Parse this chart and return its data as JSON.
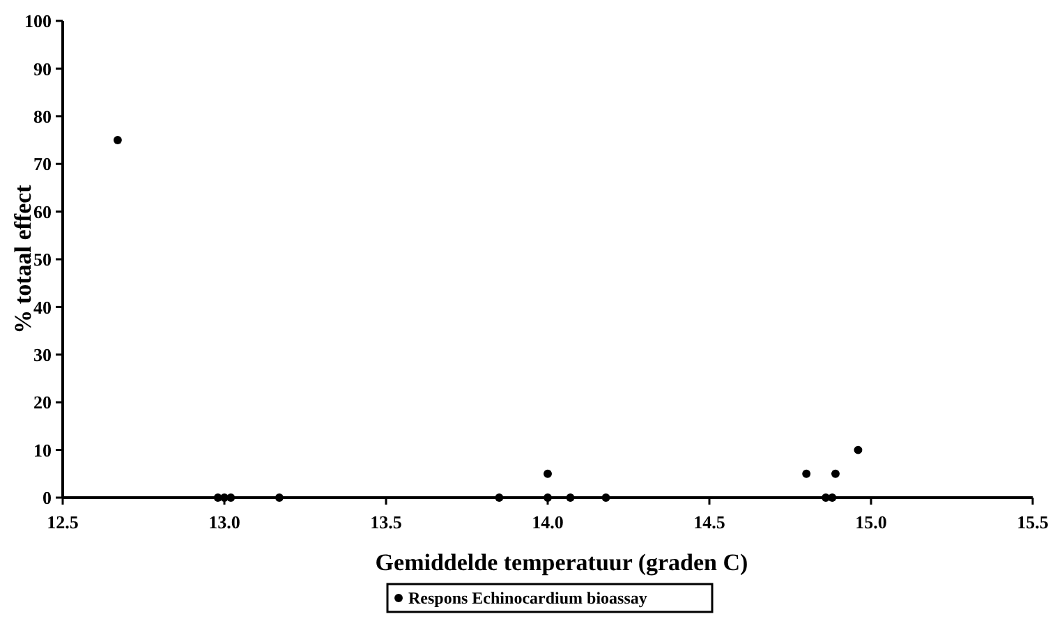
{
  "chart_data": {
    "type": "scatter",
    "xlabel": "Gemiddelde temperatuur (graden C)",
    "ylabel": "% totaal effect",
    "xlim": [
      12.5,
      15.5
    ],
    "xticks": [
      {
        "value": 12.5,
        "label": "12.5"
      },
      {
        "value": 13,
        "label": "13.0"
      },
      {
        "value": 13.5,
        "label": "13.5"
      },
      {
        "value": 14,
        "label": "14.0"
      },
      {
        "value": 14.5,
        "label": "14.5"
      },
      {
        "value": 15,
        "label": "15.0"
      },
      {
        "value": 15.5,
        "label": "15.5"
      }
    ],
    "ylim": [
      0,
      100
    ],
    "yticks": [
      0,
      10,
      20,
      30,
      40,
      50,
      60,
      70,
      80,
      90,
      100
    ],
    "grid": false,
    "legend": "bottom",
    "marker": "circle",
    "series": [
      {
        "name": "Respons Echinocardium bioassay",
        "color": "#000000",
        "x": [
          12.67,
          12.98,
          13.0,
          13.02,
          13.17,
          13.85,
          14.0,
          14.0,
          14.07,
          14.18,
          14.8,
          14.86,
          14.88,
          14.89,
          14.96
        ],
        "values": [
          75,
          0,
          0,
          0,
          0,
          0,
          5,
          0,
          0,
          0,
          5,
          0,
          0,
          5,
          10
        ]
      }
    ]
  }
}
